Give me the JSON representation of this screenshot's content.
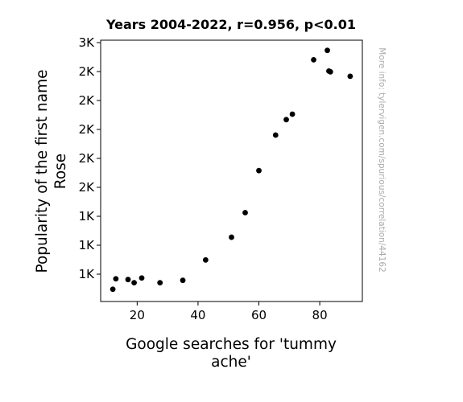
{
  "chart_data": {
    "type": "scatter",
    "title": "Years 2004-2022, r=0.956, p<0.01",
    "xlabel": [
      "Google searches for 'tummy",
      "ache'"
    ],
    "ylabel": [
      "Popularity of the first name",
      "Rose"
    ],
    "x_ticks": [
      20,
      40,
      60,
      80
    ],
    "y_ticks": [
      "3K",
      "2K",
      "2K",
      "2K",
      "2K",
      "2K",
      "1K",
      "1K",
      "1K"
    ],
    "xlim": [
      8,
      94
    ],
    "ylim": [
      0,
      1
    ],
    "side_note": "More info: tylervigen.com/spurious/correlation/44162",
    "points": [
      {
        "x": 12.0,
        "y": 0.047
      },
      {
        "x": 13.0,
        "y": 0.087
      },
      {
        "x": 17.0,
        "y": 0.084
      },
      {
        "x": 19.0,
        "y": 0.072
      },
      {
        "x": 21.5,
        "y": 0.09
      },
      {
        "x": 27.5,
        "y": 0.072
      },
      {
        "x": 35.0,
        "y": 0.081
      },
      {
        "x": 42.5,
        "y": 0.159
      },
      {
        "x": 51.0,
        "y": 0.246
      },
      {
        "x": 55.5,
        "y": 0.34
      },
      {
        "x": 60.0,
        "y": 0.501
      },
      {
        "x": 65.5,
        "y": 0.637
      },
      {
        "x": 69.0,
        "y": 0.696
      },
      {
        "x": 71.0,
        "y": 0.717
      },
      {
        "x": 78.0,
        "y": 0.925
      },
      {
        "x": 82.5,
        "y": 0.961
      },
      {
        "x": 83.0,
        "y": 0.882
      },
      {
        "x": 83.5,
        "y": 0.879
      },
      {
        "x": 90.0,
        "y": 0.862
      }
    ],
    "marker_color": "#000000",
    "grid": false
  }
}
